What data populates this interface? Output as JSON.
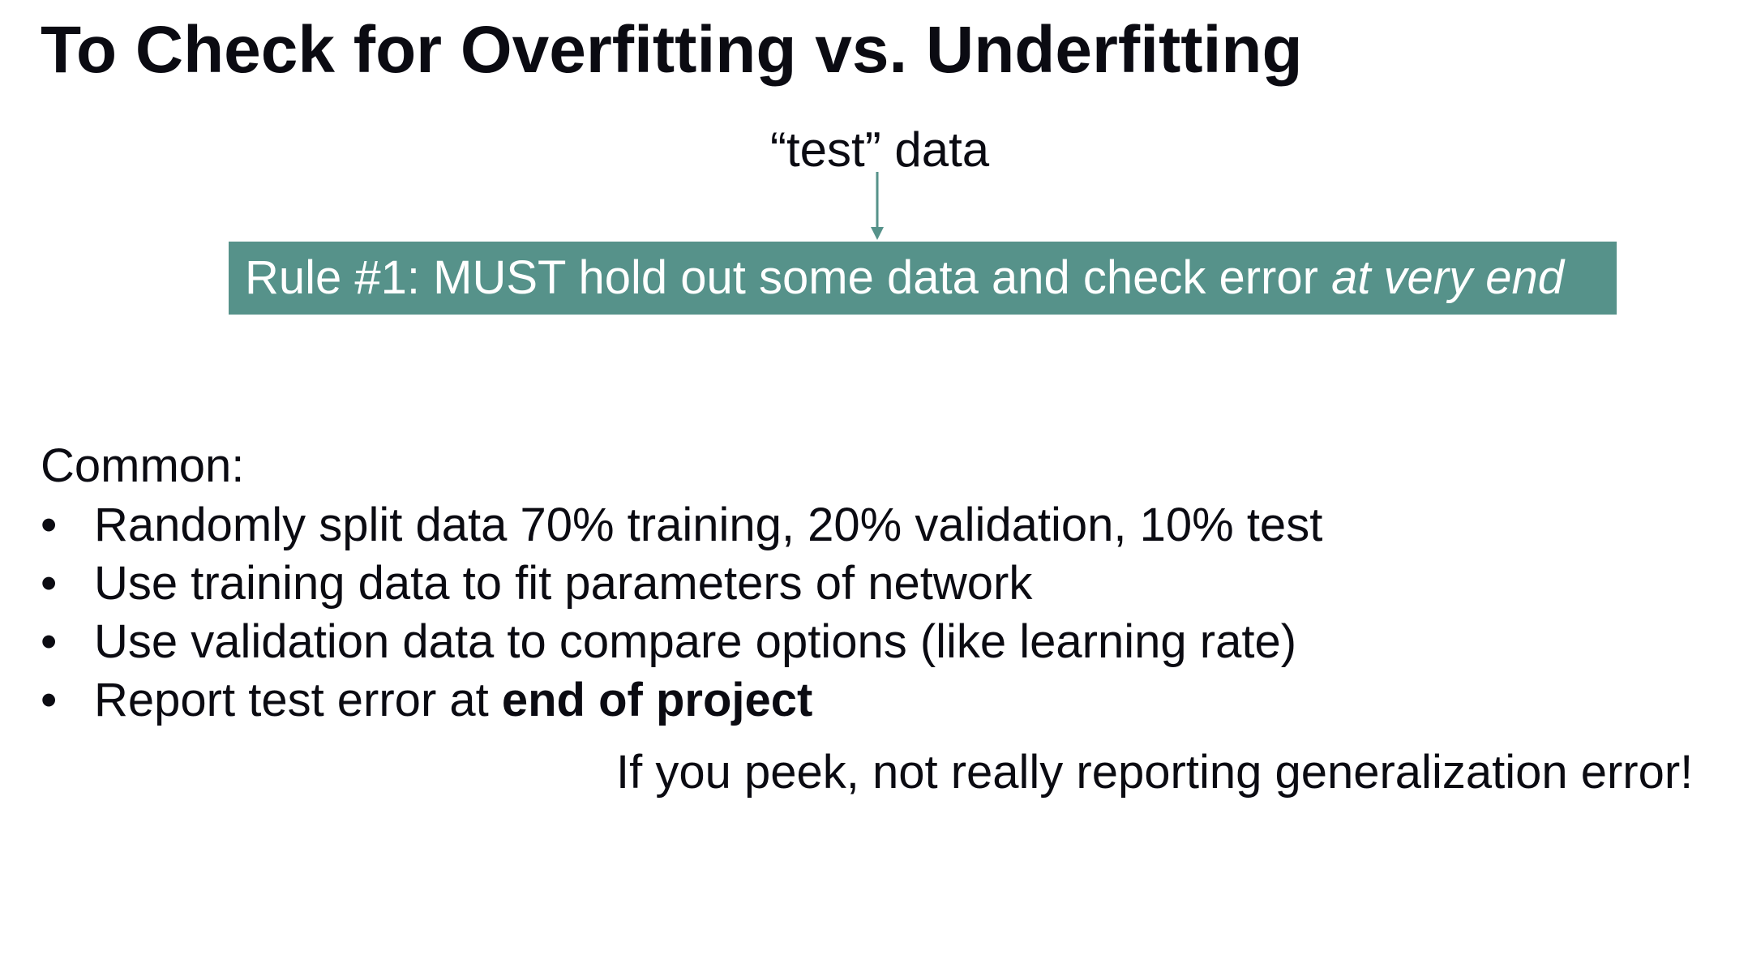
{
  "slide": {
    "title": "To Check for Overfitting vs. Underfitting",
    "test_label": "“test” data",
    "rule": {
      "prefix": "Rule #1: MUST hold out some data and check error ",
      "emphasis": "at very end"
    },
    "common_label": "Common:",
    "bullets": [
      {
        "text": "Randomly split data 70% training, 20% validation, 10% test",
        "bold": ""
      },
      {
        "text": "Use training data to fit parameters of network",
        "bold": ""
      },
      {
        "text": "Use validation data to compare options (like learning rate)",
        "bold": ""
      },
      {
        "text": "Report test error at ",
        "bold": "end of project"
      }
    ],
    "bullet_glyph": "•",
    "note": "If you peek, not really reporting generalization error!"
  },
  "colors": {
    "accent": "#56928a",
    "text": "#0b0b12",
    "background": "#ffffff"
  }
}
